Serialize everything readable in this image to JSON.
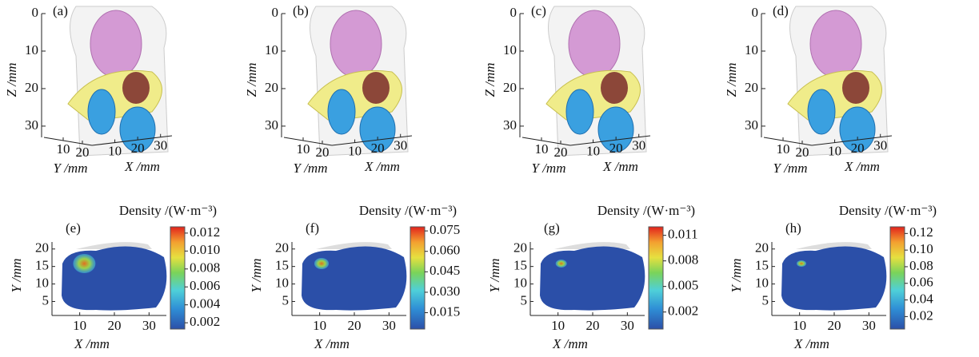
{
  "panels_3d": [
    {
      "label": "(a)",
      "zlabel": "Z /mm",
      "ylabel": "Y /mm",
      "xlabel": "X /mm",
      "zlim": [
        0,
        33
      ],
      "zticks": [
        0,
        10,
        20,
        30
      ],
      "ylim": [
        0,
        25
      ],
      "yticks": [
        10,
        20
      ],
      "xlim": [
        0,
        35
      ],
      "xticks": [
        10,
        20,
        30
      ]
    },
    {
      "label": "(b)",
      "zlabel": "Z /mm",
      "ylabel": "Y /mm",
      "xlabel": "X /mm",
      "zlim": [
        0,
        33
      ],
      "zticks": [
        0,
        10,
        20,
        30
      ],
      "ylim": [
        0,
        25
      ],
      "yticks": [
        10,
        20
      ],
      "xlim": [
        0,
        35
      ],
      "xticks": [
        10,
        20,
        30
      ]
    },
    {
      "label": "(c)",
      "zlabel": "Z /mm",
      "ylabel": "Y /mm",
      "xlabel": "X /mm",
      "zlim": [
        0,
        33
      ],
      "zticks": [
        0,
        10,
        20,
        30
      ],
      "ylim": [
        0,
        25
      ],
      "yticks": [
        10,
        20
      ],
      "xlim": [
        0,
        35
      ],
      "xticks": [
        10,
        20,
        30
      ]
    },
    {
      "label": "(d)",
      "zlabel": "Z /mm",
      "ylabel": "Y /mm",
      "xlabel": "X /mm",
      "zlim": [
        0,
        33
      ],
      "zticks": [
        0,
        10,
        20,
        30
      ],
      "ylim": [
        0,
        25
      ],
      "yticks": [
        10,
        20
      ],
      "xlim": [
        0,
        35
      ],
      "xticks": [
        10,
        20,
        30
      ]
    }
  ],
  "panels_2d": [
    {
      "label": "(e)",
      "colorbar_title": "Density /(W·m⁻³)",
      "xlabel": "X /mm",
      "ylabel": "Y /mm",
      "xlim": [
        2,
        35
      ],
      "xticks": [
        10,
        20,
        30
      ],
      "ylim": [
        1,
        22
      ],
      "yticks": [
        5,
        10,
        15,
        20
      ],
      "colorbar_lim": [
        0.0013,
        0.0127
      ],
      "colorbar_ticks": [
        0.002,
        0.004,
        0.006,
        0.008,
        {
          "value": 0.01,
          "label": "0.010"
        },
        0.012
      ]
    },
    {
      "label": "(f)",
      "colorbar_title": "Density /(W·m⁻³)",
      "xlabel": "X /mm",
      "ylabel": "Y /mm",
      "xlim": [
        2,
        35
      ],
      "xticks": [
        10,
        20,
        30
      ],
      "ylim": [
        1,
        22
      ],
      "yticks": [
        5,
        10,
        15,
        20
      ],
      "colorbar_lim": [
        0.003,
        0.078
      ],
      "colorbar_ticks": [
        0.015,
        {
          "value": 0.03,
          "label": "0.030"
        },
        0.045,
        {
          "value": 0.06,
          "label": "0.060"
        },
        0.075
      ]
    },
    {
      "label": "(g)",
      "colorbar_title": "Density /(W·m⁻³)",
      "xlabel": "X /mm",
      "ylabel": "Y /mm",
      "xlim": [
        2,
        35
      ],
      "xticks": [
        10,
        20,
        30
      ],
      "ylim": [
        1,
        22
      ],
      "yticks": [
        5,
        10,
        15,
        20
      ],
      "colorbar_lim": [
        0,
        0.012
      ],
      "colorbar_ticks": [
        0.002,
        0.005,
        0.008,
        0.011
      ]
    },
    {
      "label": "(h)",
      "colorbar_title": "Density /(W·m⁻³)",
      "xlabel": "X /mm",
      "ylabel": "Y /mm",
      "xlim": [
        2,
        35
      ],
      "xticks": [
        10,
        20,
        30
      ],
      "ylim": [
        1,
        22
      ],
      "yticks": [
        5,
        10,
        15,
        20
      ],
      "colorbar_lim": [
        0.005,
        0.128
      ],
      "colorbar_ticks": [
        0.02,
        0.04,
        0.06,
        0.08,
        {
          "value": 0.1,
          "label": "0.10"
        },
        {
          "value": 0.12,
          "label": "0.12"
        }
      ]
    }
  ]
}
